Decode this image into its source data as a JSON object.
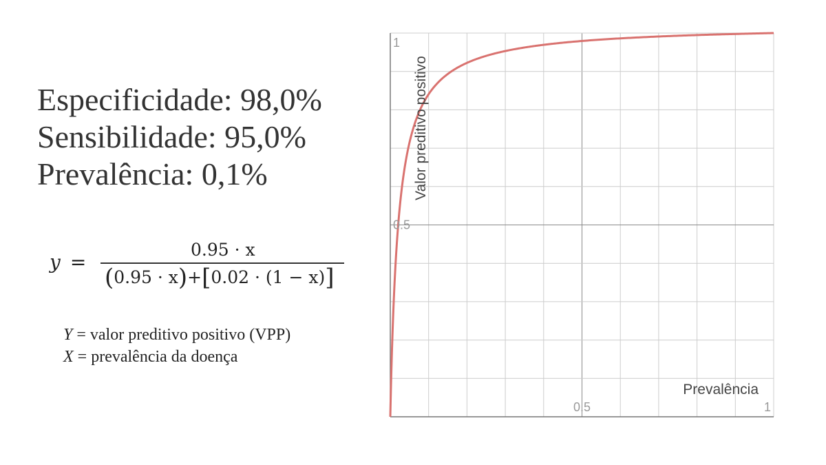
{
  "stats": {
    "especificidade": "Especificidade: 98,0%",
    "sensibilidade": "Sensibilidade: 95,0%",
    "prevalencia": "Prevalência: 0,1%"
  },
  "formula": {
    "lhs_var": "y",
    "equals": "=",
    "numerator": "0.95 · x",
    "den_left": "0.95 · x",
    "den_op": "+",
    "den_right": "0.02 · (1 − x)"
  },
  "legend": {
    "y_var": "Y",
    "y_text": " = valor preditivo positivo (VPP)",
    "x_var": "X",
    "x_text": " = prevalência da doença"
  },
  "chart_data": {
    "type": "line",
    "title": "",
    "xlabel": "Prevalência",
    "ylabel": "Valor preditivo positivo",
    "xlim": [
      0,
      1
    ],
    "ylim": [
      0,
      1
    ],
    "x_ticks": [
      0.5,
      1
    ],
    "x_tick_labels": [
      "0.5",
      "1"
    ],
    "y_ticks": [
      0.5,
      1
    ],
    "y_tick_labels": [
      "0.5",
      "1"
    ],
    "grid_step": 0.1,
    "grid": true,
    "series": [
      {
        "name": "y = 0.95x / (0.95x + 0.02(1 − x))",
        "sensitivity": 0.95,
        "false_positive_rate": 0.02,
        "color": "#d9726f"
      }
    ]
  },
  "colors": {
    "text": "#333333",
    "grid": "#cccccc",
    "axis": "#777777",
    "tick_label": "#999999",
    "axis_label": "#444444"
  }
}
